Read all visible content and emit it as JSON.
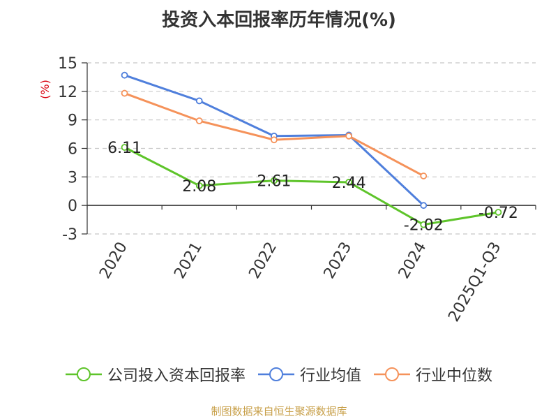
{
  "chart_data": {
    "type": "line",
    "title": "投资入本回报率历年情况(%)",
    "ylabel": "(%)",
    "xlabel": "",
    "ylim": [
      -3,
      15
    ],
    "yticks": [
      -3,
      0,
      3,
      6,
      9,
      12,
      15
    ],
    "categories": [
      "2020",
      "2021",
      "2022",
      "2023",
      "2024",
      "2025Q1-Q3"
    ],
    "series": [
      {
        "name": "公司投入资本回报率",
        "color": "#5ec42a",
        "values": [
          6.11,
          2.08,
          2.61,
          2.44,
          -2.02,
          -0.72
        ],
        "labels": [
          "6.11",
          "2.08",
          "2.61",
          "2.44",
          "-2.02",
          "-0.72"
        ]
      },
      {
        "name": "行业均值",
        "color": "#4f7fdc",
        "values": [
          13.7,
          11.0,
          7.3,
          7.4,
          0.0,
          null
        ]
      },
      {
        "name": "行业中位数",
        "color": "#f5925a",
        "values": [
          11.8,
          8.9,
          6.9,
          7.3,
          3.1,
          null
        ]
      }
    ],
    "grid": true,
    "legend_position": "bottom"
  },
  "source": "制图数据来自恒生聚源数据库"
}
